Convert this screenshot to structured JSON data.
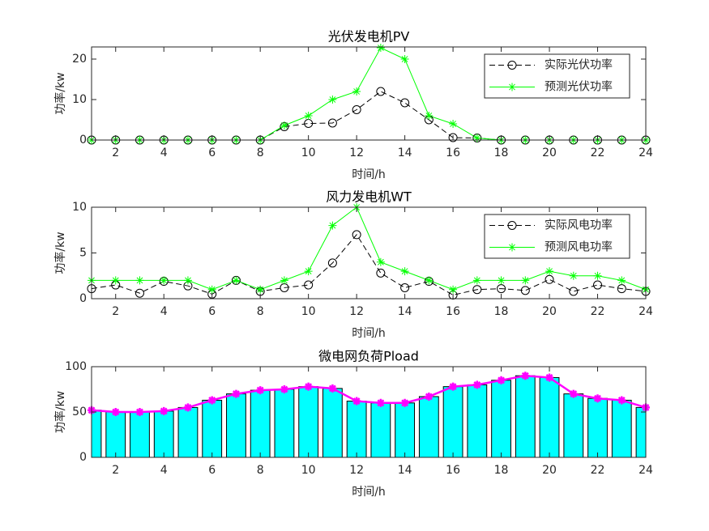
{
  "chart_data": [
    {
      "type": "line",
      "title": "光伏发电机PV",
      "xlabel": "时间/h",
      "ylabel": "功率/kw",
      "x": [
        1,
        2,
        3,
        4,
        5,
        6,
        7,
        8,
        9,
        10,
        11,
        12,
        13,
        14,
        15,
        16,
        17,
        18,
        19,
        20,
        21,
        22,
        23,
        24
      ],
      "series": [
        {
          "name": "实际光伏功率",
          "color": "#000000",
          "line_style": "dashed",
          "marker": "circle",
          "values": [
            0,
            0,
            0,
            0,
            0,
            0,
            0,
            0,
            3.3,
            4.1,
            4.2,
            7.5,
            12,
            9.2,
            5,
            0.6,
            0.5,
            0,
            0,
            0,
            0,
            0,
            0,
            0
          ]
        },
        {
          "name": "预测光伏功率",
          "color": "#00ff00",
          "line_style": "solid",
          "marker": "asterisk",
          "values": [
            0,
            0,
            0,
            0,
            0,
            0,
            0,
            0,
            3.6,
            6,
            10,
            12,
            22.8,
            20,
            6,
            4,
            0.5,
            0,
            0,
            0,
            0,
            0,
            0,
            0
          ]
        }
      ],
      "xlim": [
        1,
        24
      ],
      "xticks": [
        2,
        4,
        6,
        8,
        10,
        12,
        14,
        16,
        18,
        20,
        22,
        24
      ],
      "ylim": [
        0,
        23
      ],
      "yticks": [
        0,
        10,
        20
      ],
      "legend": "upper right"
    },
    {
      "type": "line",
      "title": "风力发电机WT",
      "xlabel": "时间/h",
      "ylabel": "功率/kw",
      "x": [
        1,
        2,
        3,
        4,
        5,
        6,
        7,
        8,
        9,
        10,
        11,
        12,
        13,
        14,
        15,
        16,
        17,
        18,
        19,
        20,
        21,
        22,
        23,
        24
      ],
      "series": [
        {
          "name": "实际风电功率",
          "color": "#000000",
          "line_style": "dashed",
          "marker": "circle",
          "values": [
            1.1,
            1.5,
            0.6,
            1.9,
            1.4,
            0.5,
            2,
            0.8,
            1.2,
            1.5,
            3.9,
            7,
            2.8,
            1.2,
            1.9,
            0.4,
            1,
            1.1,
            0.9,
            2.1,
            0.8,
            1.5,
            1.1,
            0.8
          ]
        },
        {
          "name": "预测风电功率",
          "color": "#00ff00",
          "line_style": "solid",
          "marker": "asterisk",
          "values": [
            2,
            2,
            2,
            2,
            2,
            1,
            2,
            1,
            2,
            3,
            8,
            10,
            4,
            3,
            2,
            1,
            2,
            2,
            2,
            3,
            2.5,
            2.5,
            2,
            1
          ]
        }
      ],
      "xlim": [
        1,
        24
      ],
      "xticks": [
        2,
        4,
        6,
        8,
        10,
        12,
        14,
        16,
        18,
        20,
        22,
        24
      ],
      "ylim": [
        0,
        10
      ],
      "yticks": [
        0,
        5,
        10
      ],
      "legend": "upper right"
    },
    {
      "type": "bar_line",
      "title": "微电网负荷Pload",
      "xlabel": "时间/h",
      "ylabel": "功率/kw",
      "x": [
        1,
        2,
        3,
        4,
        5,
        6,
        7,
        8,
        9,
        10,
        11,
        12,
        13,
        14,
        15,
        16,
        17,
        18,
        19,
        20,
        21,
        22,
        23,
        24
      ],
      "series": [
        {
          "type": "bar",
          "color": "#00ffff",
          "values": [
            52,
            50,
            50,
            51,
            55,
            63,
            70,
            74,
            75,
            78,
            76,
            62,
            60,
            60,
            67,
            78,
            80,
            85,
            90,
            88,
            70,
            65,
            63,
            55
          ]
        },
        {
          "type": "line",
          "color": "#ff00ff",
          "marker": "asterisk",
          "values": [
            52,
            50,
            50,
            51,
            55,
            63,
            70,
            74,
            75,
            78,
            76,
            62,
            60,
            60,
            67,
            78,
            80,
            85,
            90,
            88,
            70,
            65,
            63,
            55
          ]
        }
      ],
      "xlim": [
        1,
        24
      ],
      "xticks": [
        2,
        4,
        6,
        8,
        10,
        12,
        14,
        16,
        18,
        20,
        22,
        24
      ],
      "ylim": [
        0,
        100
      ],
      "yticks": [
        0,
        50,
        100
      ]
    }
  ]
}
